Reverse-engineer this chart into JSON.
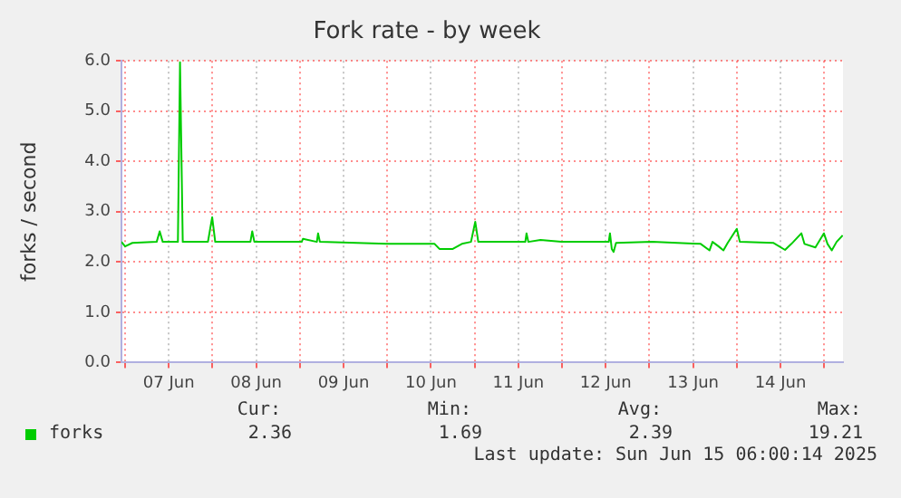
{
  "chart_data": {
    "type": "line",
    "title": "Fork rate - by week",
    "ylabel": "forks / second",
    "x": [
      "2025-06-06T23:00",
      "2025-06-07T00:00",
      "2025-06-07T02:00",
      "2025-06-07T08:40",
      "2025-06-07T09:30",
      "2025-06-07T10:20",
      "2025-06-07T14:30",
      "2025-06-07T15:05",
      "2025-06-07T15:50",
      "2025-06-07T22:45",
      "2025-06-07T23:55",
      "2025-06-08T00:45",
      "2025-06-08T10:25",
      "2025-06-08T10:55",
      "2025-06-08T11:30",
      "2025-06-09T00:30",
      "2025-06-09T00:50",
      "2025-06-09T04:40",
      "2025-06-09T05:00",
      "2025-06-09T05:30",
      "2025-06-09T23:45",
      "2025-06-10T13:00",
      "2025-06-10T14:20",
      "2025-06-10T18:00",
      "2025-06-10T20:30",
      "2025-06-10T23:00",
      "2025-06-11T00:10",
      "2025-06-11T01:00",
      "2025-06-11T13:55",
      "2025-06-11T14:15",
      "2025-06-11T14:45",
      "2025-06-11T18:05",
      "2025-06-11T23:50",
      "2025-06-12T12:50",
      "2025-06-12T13:10",
      "2025-06-12T13:40",
      "2025-06-12T14:10",
      "2025-06-12T14:50",
      "2025-06-13T00:45",
      "2025-06-13T14:05",
      "2025-06-13T16:30",
      "2025-06-13T17:20",
      "2025-06-13T19:00",
      "2025-06-13T20:20",
      "2025-06-13T21:30",
      "2025-06-14T00:00",
      "2025-06-14T00:50",
      "2025-06-14T10:00",
      "2025-06-14T13:15",
      "2025-06-14T15:00",
      "2025-06-14T17:45",
      "2025-06-14T18:35",
      "2025-06-14T21:35",
      "2025-06-14T23:55",
      "2025-06-15T00:55",
      "2025-06-15T02:05",
      "2025-06-15T03:25",
      "2025-06-15T05:05"
    ],
    "series": [
      {
        "name": "forks",
        "color": "#00cc00",
        "values": [
          2.4,
          2.31,
          2.38,
          2.4,
          2.61,
          2.4,
          2.4,
          5.97,
          2.4,
          2.4,
          2.89,
          2.4,
          2.4,
          2.61,
          2.4,
          2.4,
          2.46,
          2.4,
          2.57,
          2.4,
          2.36,
          2.36,
          2.26,
          2.26,
          2.36,
          2.4,
          2.8,
          2.4,
          2.4,
          2.57,
          2.4,
          2.44,
          2.4,
          2.4,
          2.57,
          2.26,
          2.2,
          2.38,
          2.4,
          2.36,
          2.23,
          2.4,
          2.31,
          2.23,
          2.38,
          2.66,
          2.4,
          2.38,
          2.24,
          2.36,
          2.57,
          2.36,
          2.29,
          2.57,
          2.36,
          2.23,
          2.4,
          2.53
        ]
      }
    ],
    "xlim": [
      "2025-06-06T23:00",
      "2025-06-15T05:10"
    ],
    "xticks": [
      {
        "value": "2025-06-07T00:00",
        "label": null
      },
      {
        "value": "2025-06-07T12:00",
        "label": "07 Jun"
      },
      {
        "value": "2025-06-08T00:00",
        "label": null
      },
      {
        "value": "2025-06-08T12:00",
        "label": "08 Jun"
      },
      {
        "value": "2025-06-09T00:00",
        "label": null
      },
      {
        "value": "2025-06-09T12:00",
        "label": "09 Jun"
      },
      {
        "value": "2025-06-10T00:00",
        "label": null
      },
      {
        "value": "2025-06-10T12:00",
        "label": "10 Jun"
      },
      {
        "value": "2025-06-11T00:00",
        "label": null
      },
      {
        "value": "2025-06-11T12:00",
        "label": "11 Jun"
      },
      {
        "value": "2025-06-12T00:00",
        "label": null
      },
      {
        "value": "2025-06-12T12:00",
        "label": "12 Jun"
      },
      {
        "value": "2025-06-13T00:00",
        "label": null
      },
      {
        "value": "2025-06-13T12:00",
        "label": "13 Jun"
      },
      {
        "value": "2025-06-14T00:00",
        "label": null
      },
      {
        "value": "2025-06-14T12:00",
        "label": "14 Jun"
      },
      {
        "value": "2025-06-15T00:00",
        "label": null
      }
    ],
    "ylim": [
      0,
      6
    ],
    "yticks": [
      {
        "value": 0,
        "label": "0.0"
      },
      {
        "value": 1,
        "label": "1.0"
      },
      {
        "value": 2,
        "label": "2.0"
      },
      {
        "value": 3,
        "label": "3.0"
      },
      {
        "value": 4,
        "label": "4.0"
      },
      {
        "value": 5,
        "label": "5.0"
      },
      {
        "value": 6,
        "label": "6.0"
      }
    ],
    "grid": true,
    "legend": "bottom",
    "marker": "none",
    "line_style": "solid",
    "annotations": [
      "Cur:",
      "Min:",
      "Avg:",
      "Max:",
      "2.36",
      "1.69",
      "2.39",
      "19.21",
      "Last update: Sun Jun 15 06:00:14 2025"
    ]
  }
}
